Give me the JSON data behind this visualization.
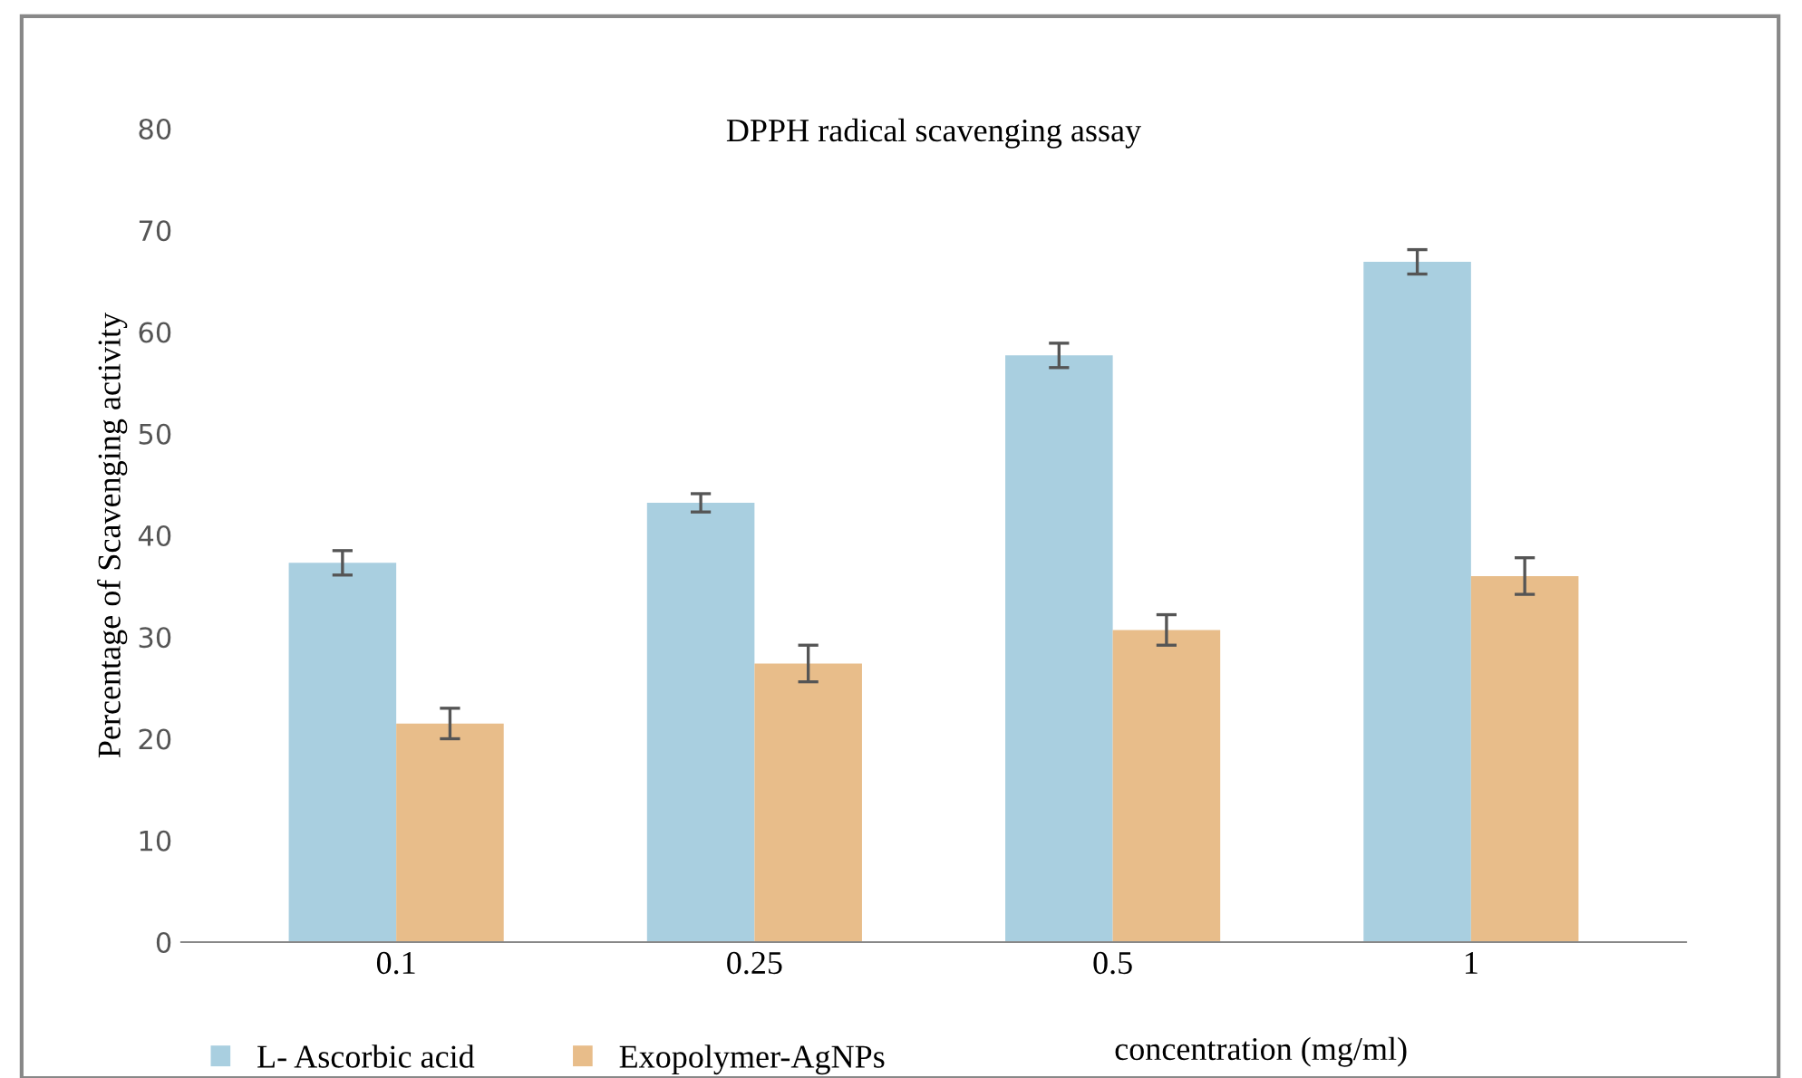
{
  "chart_data": {
    "type": "bar",
    "title": "DPPH radical scavenging assay",
    "xlabel": "concentration (mg/ml)",
    "ylabel": "Percentage of Scavenging activity",
    "categories": [
      "0.1",
      "0.25",
      "0.5",
      "1"
    ],
    "series": [
      {
        "name": "L- Ascorbic acid",
        "color": "#a9cfe0",
        "values": [
          37.3,
          43.2,
          57.7,
          66.9
        ],
        "errors": [
          1.2,
          0.9,
          1.2,
          1.2
        ]
      },
      {
        "name": "Exopolymer-AgNPs",
        "color": "#e8bd8a",
        "values": [
          21.5,
          27.4,
          30.7,
          36.0
        ],
        "errors": [
          1.5,
          1.8,
          1.5,
          1.8
        ]
      }
    ],
    "ylim": [
      0,
      80
    ],
    "yticks": [
      0,
      10,
      20,
      30,
      40,
      50,
      60,
      70,
      80
    ],
    "grid": false,
    "legend": "bottom left"
  }
}
